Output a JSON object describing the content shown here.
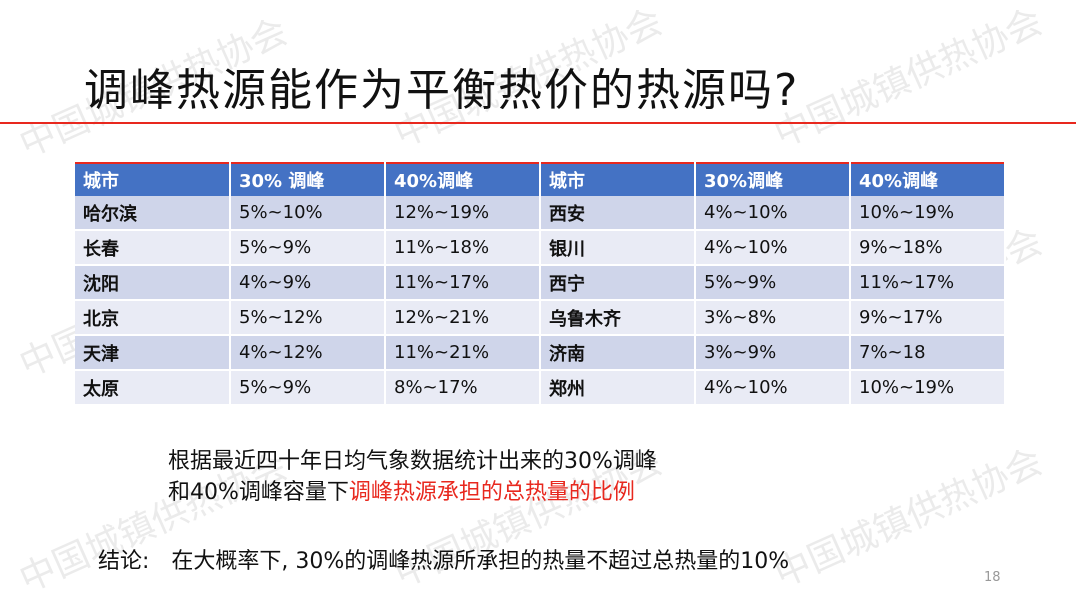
{
  "title": "调峰热源能作为平衡热价的热源吗?",
  "watermark_text": "中国城镇供热协会",
  "table": {
    "headers": [
      "城市",
      "30% 调峰",
      "40%调峰",
      "城市",
      "30%调峰",
      "40%调峰"
    ],
    "rows": [
      [
        "哈尔滨",
        "5%~10%",
        "12%~19%",
        "西安",
        "4%~10%",
        "10%~19%"
      ],
      [
        "长春",
        "5%~9%",
        "11%~18%",
        "银川",
        "4%~10%",
        "9%~18%"
      ],
      [
        "沈阳",
        "4%~9%",
        "11%~17%",
        "西宁",
        "5%~9%",
        "11%~17%"
      ],
      [
        "北京",
        "5%~12%",
        "12%~21%",
        "乌鲁木齐",
        "3%~8%",
        "9%~17%"
      ],
      [
        "天津",
        "4%~12%",
        "11%~21%",
        "济南",
        "3%~9%",
        "7%~18"
      ],
      [
        "太原",
        "5%~9%",
        "8%~17%",
        "郑州",
        "4%~10%",
        "10%~19%"
      ]
    ]
  },
  "note": {
    "line1": "根据最近四十年日均气象数据统计出来的30%调峰",
    "line2_prefix": "和40%调峰容量下",
    "line2_highlight": "调峰热源承担的总热量的比例"
  },
  "conclusion": {
    "label": "结论:",
    "text": "在大概率下, 30%的调峰热源所承担的热量不超过总热量的10%"
  },
  "page_number": "18",
  "colors": {
    "accent_red": "#e8281e",
    "header_blue": "#4472c4",
    "row_dark": "#cfd5ea",
    "row_light": "#e9ebf5"
  }
}
